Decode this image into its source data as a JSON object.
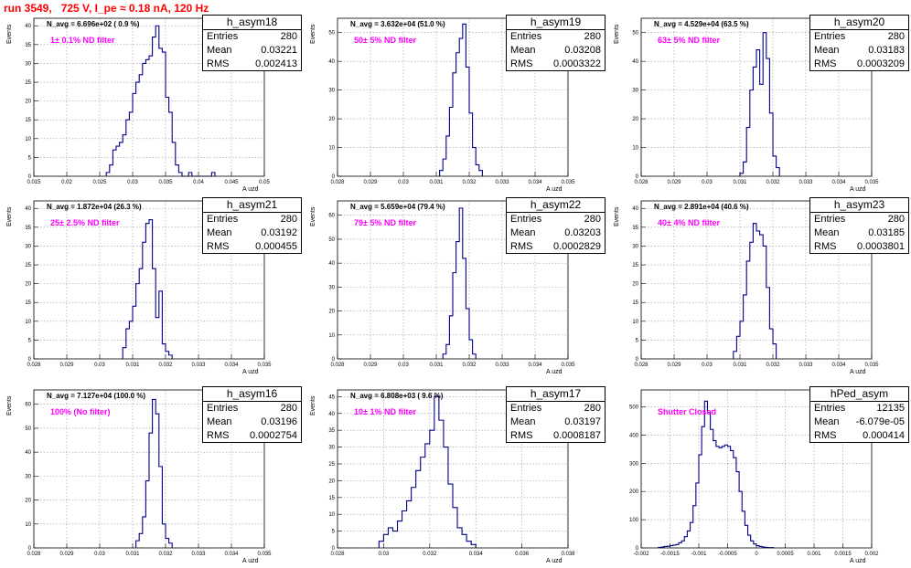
{
  "header": {
    "run_title": "run 3549,   725 V, I_pe ≈ 0.18 nA, 120 Hz"
  },
  "stat_labels": {
    "entries": "Entries",
    "mean": "Mean",
    "rms": "RMS"
  },
  "line_color": "#00008b",
  "chart_data": [
    {
      "type": "histogram",
      "title": "h_asym18",
      "n_avg": "N_avg = 6.696e+02 ( 0.9 %)",
      "filter_label": "1± 0.1% ND filter",
      "entries": "280",
      "mean": "0.03221",
      "rms": "0.002413",
      "xlabel": "A uzd",
      "ylabel": "Events",
      "xlim": [
        0.015,
        0.05
      ],
      "ylim": [
        0,
        42
      ],
      "xticks": [
        0.015,
        0.02,
        0.025,
        0.03,
        0.035,
        0.04,
        0.045,
        0.05
      ],
      "xticklabels": [
        "0.015",
        "0.02",
        "0.025",
        "0.03",
        "0.035",
        "0.04",
        "0.045",
        "0.05"
      ],
      "yticks": [
        0,
        5,
        10,
        15,
        20,
        25,
        30,
        35,
        40
      ],
      "yticklabels": [
        "0",
        "5",
        "10",
        "15",
        "20",
        "25",
        "30",
        "35",
        "40"
      ],
      "bins": {
        "start": 0.026,
        "width": 0.0005,
        "counts": [
          1,
          3,
          7,
          8,
          9,
          11,
          15,
          17,
          22,
          25,
          27,
          30,
          31,
          32,
          37,
          40,
          34,
          33,
          21,
          17,
          9,
          3,
          1,
          0,
          0,
          1,
          0,
          0,
          0,
          0,
          0,
          0,
          1
        ]
      }
    },
    {
      "type": "histogram",
      "title": "h_asym19",
      "n_avg": "N_avg = 3.632e+04 (51.0 %)",
      "filter_label": "50± 5% ND filter",
      "entries": "280",
      "mean": "0.03208",
      "rms": "0.0003322",
      "xlabel": "A uzd",
      "ylabel": "Events",
      "xlim": [
        0.028,
        0.035
      ],
      "ylim": [
        0,
        55
      ],
      "xticks": [
        0.028,
        0.029,
        0.03,
        0.031,
        0.032,
        0.033,
        0.034,
        0.035
      ],
      "xticklabels": [
        "0.028",
        "0.029",
        "0.03",
        "0.031",
        "0.032",
        "0.033",
        "0.034",
        "0.035"
      ],
      "yticks": [
        0,
        10,
        20,
        30,
        40,
        50
      ],
      "yticklabels": [
        "0",
        "10",
        "20",
        "30",
        "40",
        "50"
      ],
      "bins": {
        "start": 0.0311,
        "width": 0.0001,
        "counts": [
          2,
          6,
          14,
          24,
          36,
          43,
          48,
          53,
          38,
          22,
          10,
          4,
          2
        ]
      }
    },
    {
      "type": "histogram",
      "title": "h_asym20",
      "n_avg": "N_avg = 4.529e+04 (63.5 %)",
      "filter_label": "63± 5% ND filter",
      "entries": "280",
      "mean": "0.03183",
      "rms": "0.0003209",
      "xlabel": "A uzd",
      "ylabel": "Events",
      "xlim": [
        0.028,
        0.035
      ],
      "ylim": [
        0,
        55
      ],
      "xticks": [
        0.028,
        0.029,
        0.03,
        0.031,
        0.032,
        0.033,
        0.034,
        0.035
      ],
      "xticklabels": [
        "0.028",
        "0.029",
        "0.03",
        "0.031",
        "0.032",
        "0.033",
        "0.034",
        "0.035"
      ],
      "yticks": [
        0,
        10,
        20,
        30,
        40,
        50
      ],
      "yticklabels": [
        "0",
        "10",
        "20",
        "30",
        "40",
        "50"
      ],
      "bins": {
        "start": 0.031,
        "width": 0.0001,
        "counts": [
          1,
          5,
          17,
          30,
          38,
          44,
          32,
          50,
          41,
          22,
          7,
          3
        ]
      }
    },
    {
      "type": "histogram",
      "title": "h_asym21",
      "n_avg": "N_avg = 1.872e+04 (26.3 %)",
      "filter_label": "25± 2.5% ND filter",
      "entries": "280",
      "mean": "0.03192",
      "rms": "0.000455",
      "xlabel": "A uzd",
      "ylabel": "Events",
      "xlim": [
        0.028,
        0.035
      ],
      "ylim": [
        0,
        42
      ],
      "xticks": [
        0.028,
        0.029,
        0.03,
        0.031,
        0.032,
        0.033,
        0.034,
        0.035
      ],
      "xticklabels": [
        "0.028",
        "0.029",
        "0.03",
        "0.031",
        "0.032",
        "0.033",
        "0.034",
        "0.035"
      ],
      "yticks": [
        0,
        5,
        10,
        15,
        20,
        25,
        30,
        35,
        40
      ],
      "yticklabels": [
        "0",
        "5",
        "10",
        "15",
        "20",
        "25",
        "30",
        "35",
        "40"
      ],
      "bins": {
        "start": 0.0307,
        "width": 0.0001,
        "counts": [
          3,
          8,
          10,
          14,
          20,
          24,
          31,
          36,
          37,
          24,
          11,
          18,
          4,
          2,
          1
        ]
      }
    },
    {
      "type": "histogram",
      "title": "h_asym22",
      "n_avg": "N_avg = 5.659e+04 (79.4 %)",
      "filter_label": "79± 5% ND filter",
      "entries": "280",
      "mean": "0.03203",
      "rms": "0.0002829",
      "xlabel": "A uzd",
      "ylabel": "Events",
      "xlim": [
        0.028,
        0.035
      ],
      "ylim": [
        0,
        66
      ],
      "xticks": [
        0.028,
        0.029,
        0.03,
        0.031,
        0.032,
        0.033,
        0.034,
        0.035
      ],
      "xticklabels": [
        "0.028",
        "0.029",
        "0.03",
        "0.031",
        "0.032",
        "0.033",
        "0.034",
        "0.035"
      ],
      "yticks": [
        0,
        10,
        20,
        30,
        40,
        50,
        60
      ],
      "yticklabels": [
        "0",
        "10",
        "20",
        "30",
        "40",
        "50",
        "60"
      ],
      "bins": {
        "start": 0.0312,
        "width": 0.0001,
        "counts": [
          2,
          6,
          18,
          36,
          49,
          63,
          42,
          21,
          8,
          2
        ]
      }
    },
    {
      "type": "histogram",
      "title": "h_asym23",
      "n_avg": "N_avg = 2.891e+04 (40.6 %)",
      "filter_label": "40± 4% ND filter",
      "entries": "280",
      "mean": "0.03185",
      "rms": "0.0003801",
      "xlabel": "A uzd",
      "ylabel": "Events",
      "xlim": [
        0.028,
        0.035
      ],
      "ylim": [
        0,
        42
      ],
      "xticks": [
        0.028,
        0.029,
        0.03,
        0.031,
        0.032,
        0.033,
        0.034,
        0.035
      ],
      "xticklabels": [
        "0.028",
        "0.029",
        "0.03",
        "0.031",
        "0.032",
        "0.033",
        "0.034",
        "0.035"
      ],
      "yticks": [
        0,
        5,
        10,
        15,
        20,
        25,
        30,
        35,
        40
      ],
      "yticklabels": [
        "0",
        "5",
        "10",
        "15",
        "20",
        "25",
        "30",
        "35",
        "40"
      ],
      "bins": {
        "start": 0.0308,
        "width": 0.0001,
        "counts": [
          2,
          6,
          10,
          17,
          26,
          31,
          36,
          34,
          33,
          30,
          19,
          8,
          4
        ]
      }
    },
    {
      "type": "histogram",
      "title": "h_asym16",
      "n_avg": "N_avg = 7.127e+04 (100.0 %)",
      "filter_label": "100% (No filter)",
      "entries": "280",
      "mean": "0.03196",
      "rms": "0.0002754",
      "xlabel": "A uzd",
      "ylabel": "Events",
      "xlim": [
        0.028,
        0.035
      ],
      "ylim": [
        0,
        66
      ],
      "xticks": [
        0.028,
        0.029,
        0.03,
        0.031,
        0.032,
        0.033,
        0.034,
        0.035
      ],
      "xticklabels": [
        "0.028",
        "0.029",
        "0.03",
        "0.031",
        "0.032",
        "0.033",
        "0.034",
        "0.035"
      ],
      "yticks": [
        0,
        10,
        20,
        30,
        40,
        50,
        60
      ],
      "yticklabels": [
        "0",
        "10",
        "20",
        "30",
        "40",
        "50",
        "60"
      ],
      "bins": {
        "start": 0.0311,
        "width": 0.0001,
        "counts": [
          3,
          6,
          13,
          28,
          48,
          62,
          56,
          34,
          10,
          4,
          2
        ]
      }
    },
    {
      "type": "histogram",
      "title": "h_asym17",
      "n_avg": "N_avg = 6.808e+03 ( 9.6 %)",
      "filter_label": "10± 1% ND filter",
      "entries": "280",
      "mean": "0.03197",
      "rms": "0.0008187",
      "xlabel": "A uzd",
      "ylabel": "Events",
      "xlim": [
        0.028,
        0.038
      ],
      "ylim": [
        0,
        47
      ],
      "xticks": [
        0.028,
        0.03,
        0.032,
        0.034,
        0.036,
        0.038
      ],
      "xticklabels": [
        "0.028",
        "0.03",
        "0.032",
        "0.034",
        "0.036",
        "0.038"
      ],
      "yticks": [
        0,
        5,
        10,
        15,
        20,
        25,
        30,
        35,
        40,
        45
      ],
      "yticklabels": [
        "0",
        "5",
        "10",
        "15",
        "20",
        "25",
        "30",
        "35",
        "40",
        "45"
      ],
      "bins": {
        "start": 0.0298,
        "width": 0.0002,
        "counts": [
          2,
          4,
          6,
          5,
          8,
          11,
          14,
          18,
          23,
          27,
          31,
          35,
          45,
          38,
          30,
          19,
          12,
          6,
          4,
          2,
          1
        ]
      }
    },
    {
      "type": "histogram",
      "title": "hPed_asym",
      "n_avg": "",
      "filter_label": "Shutter Closed",
      "entries": "12135",
      "mean": "-6.079e-05",
      "rms": "0.000414",
      "xlabel": "A uzd",
      "ylabel": "",
      "xlim": [
        -0.002,
        0.002
      ],
      "ylim": [
        0,
        560
      ],
      "xticks": [
        -0.002,
        -0.0015,
        -0.001,
        -0.0005,
        0,
        0.0005,
        0.001,
        0.0015,
        0.002
      ],
      "xticklabels": [
        "-0.002",
        "-0.0015",
        "-0.001",
        "-0.0005",
        "0",
        "0.0005",
        "0.001",
        "0.0015",
        "0.002"
      ],
      "yticks": [
        0,
        100,
        200,
        300,
        400,
        500
      ],
      "yticklabels": [
        "0",
        "100",
        "200",
        "300",
        "400",
        "500"
      ],
      "bins": {
        "start": -0.0017,
        "width": 5e-05,
        "counts": [
          2,
          3,
          5,
          6,
          8,
          10,
          12,
          18,
          25,
          40,
          60,
          90,
          150,
          230,
          330,
          430,
          520,
          480,
          420,
          380,
          360,
          355,
          360,
          365,
          360,
          345,
          320,
          270,
          200,
          130,
          80,
          45,
          25,
          14,
          8,
          5,
          3,
          2,
          1,
          1
        ]
      }
    }
  ]
}
